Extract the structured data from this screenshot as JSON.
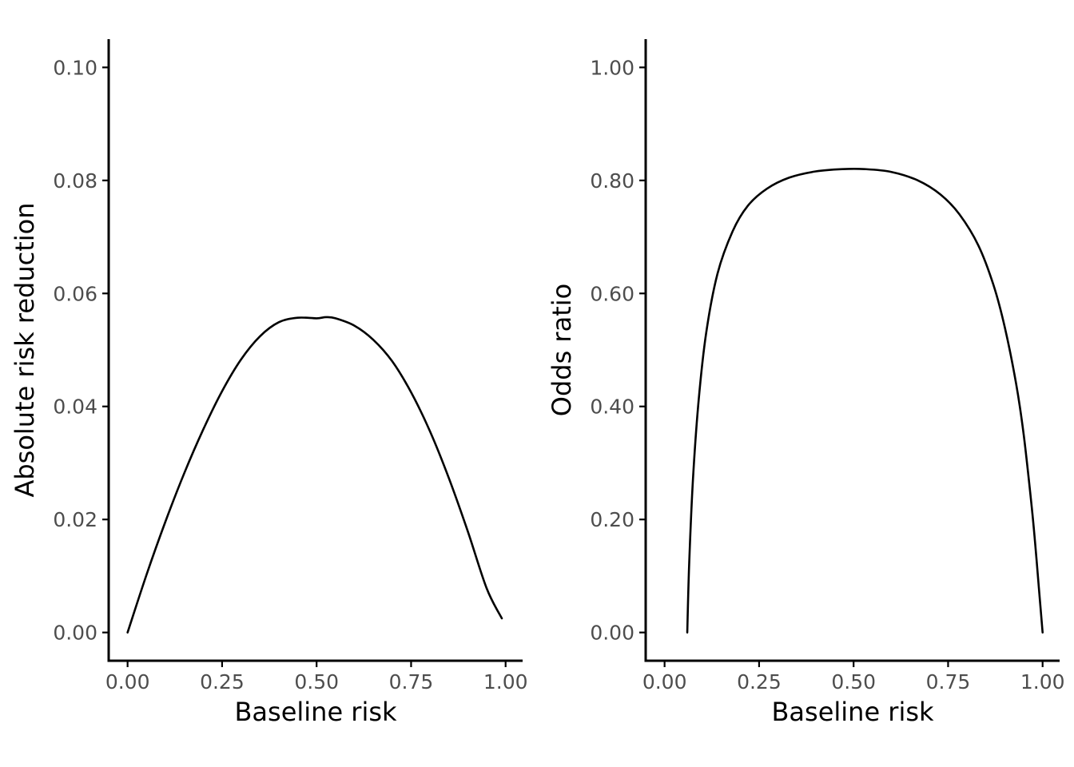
{
  "chart_data": [
    {
      "type": "line",
      "title": "",
      "xlabel": "Baseline risk",
      "ylabel": "Absolute risk reduction",
      "xlim": [
        -0.05,
        1.045
      ],
      "ylim": [
        -0.005,
        0.105
      ],
      "xticks": [
        0.0,
        0.25,
        0.5,
        0.75,
        1.0
      ],
      "xtick_labels": [
        "0.00",
        "0.25",
        "0.50",
        "0.75",
        "1.00"
      ],
      "yticks": [
        0.0,
        0.02,
        0.04,
        0.06,
        0.08,
        0.1
      ],
      "ytick_labels": [
        "0.00",
        "0.02",
        "0.04",
        "0.06",
        "0.08",
        "0.10"
      ],
      "grid": false,
      "series": [
        {
          "x": [
            0.0,
            0.05,
            0.1,
            0.15,
            0.2,
            0.25,
            0.3,
            0.35,
            0.4,
            0.45,
            0.5,
            0.525,
            0.55,
            0.6,
            0.65,
            0.7,
            0.75,
            0.8,
            0.85,
            0.9,
            0.95,
            0.99
          ],
          "y": [
            0.0,
            0.0102,
            0.0196,
            0.0282,
            0.0359,
            0.0427,
            0.0483,
            0.0524,
            0.0549,
            0.0557,
            0.0556,
            0.0558,
            0.0556,
            0.0543,
            0.0518,
            0.048,
            0.0425,
            0.0356,
            0.0273,
            0.0179,
            0.0078,
            0.0025
          ]
        }
      ]
    },
    {
      "type": "line",
      "title": "",
      "xlabel": "Baseline risk",
      "ylabel": "Odds ratio",
      "xlim": [
        -0.05,
        1.045
      ],
      "ylim": [
        -0.05,
        1.05
      ],
      "xticks": [
        0.0,
        0.25,
        0.5,
        0.75,
        1.0
      ],
      "xtick_labels": [
        "0.00",
        "0.25",
        "0.50",
        "0.75",
        "1.00"
      ],
      "yticks": [
        0.0,
        0.2,
        0.4,
        0.6,
        0.8,
        1.0
      ],
      "ytick_labels": [
        "0.00",
        "0.20",
        "0.40",
        "0.60",
        "0.80",
        "1.00"
      ],
      "grid": false,
      "series": [
        {
          "x": [
            0.06,
            0.065,
            0.075,
            0.09,
            0.11,
            0.14,
            0.18,
            0.22,
            0.27,
            0.33,
            0.4,
            0.47,
            0.53,
            0.6,
            0.67,
            0.73,
            0.78,
            0.83,
            0.87,
            0.9,
            0.93,
            0.95,
            0.97,
            0.98,
            0.99,
            0.995,
            1.0
          ],
          "y": [
            0.0,
            0.12,
            0.27,
            0.41,
            0.53,
            0.635,
            0.71,
            0.755,
            0.785,
            0.805,
            0.816,
            0.82,
            0.82,
            0.815,
            0.8,
            0.775,
            0.74,
            0.685,
            0.615,
            0.54,
            0.44,
            0.35,
            0.23,
            0.16,
            0.08,
            0.04,
            0.0
          ]
        }
      ]
    }
  ]
}
